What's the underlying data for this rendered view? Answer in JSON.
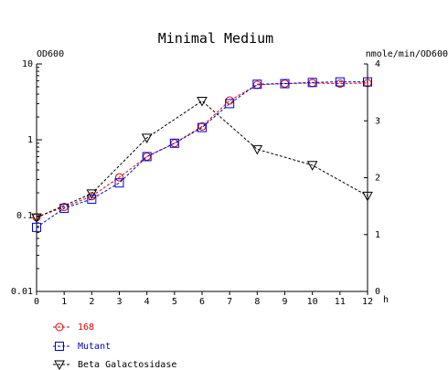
{
  "chart_data": {
    "type": "line",
    "title": "Minimal Medium",
    "y_left_label": "OD600",
    "y_right_label": "nmole/min/OD600",
    "x_unit_label": "h",
    "x_range": [
      0,
      12
    ],
    "x_ticks": [
      "0",
      "1",
      "2",
      "3",
      "4",
      "5",
      "6",
      "7",
      "8",
      "9",
      "10",
      "11",
      "12"
    ],
    "y_left_scale": "log",
    "y_left_range": [
      0.01,
      10
    ],
    "y_left_ticks": [
      "0.01",
      "0.1",
      "1",
      "10"
    ],
    "y_right_range": [
      0,
      4
    ],
    "y_right_ticks": [
      "0",
      "1",
      "2",
      "3",
      "4"
    ],
    "grid": false,
    "legend_position": "bottom-left",
    "series": [
      {
        "name": "168",
        "color": "#e00000",
        "marker": "circle",
        "axis": "left",
        "x": [
          0,
          1,
          2,
          3,
          4,
          5,
          6,
          7,
          8,
          9,
          10,
          11,
          12
        ],
        "y": [
          0.095,
          0.13,
          0.18,
          0.32,
          0.6,
          0.9,
          1.5,
          3.3,
          5.3,
          5.5,
          5.6,
          5.5,
          5.6
        ]
      },
      {
        "name": "Mutant",
        "color": "#0000d0",
        "marker": "square",
        "axis": "left",
        "x": [
          0,
          1,
          2,
          3,
          4,
          5,
          6,
          7,
          8,
          9,
          10,
          11,
          12
        ],
        "y": [
          0.07,
          0.125,
          0.165,
          0.27,
          0.6,
          0.9,
          1.45,
          3.0,
          5.4,
          5.5,
          5.7,
          5.8,
          5.8
        ]
      },
      {
        "name": "Beta Galactosidase",
        "color": "#000000",
        "marker": "triangle-down",
        "axis": "right",
        "x": [
          0,
          2,
          4,
          6,
          8,
          10,
          12
        ],
        "y": [
          1.3,
          1.72,
          2.7,
          3.35,
          2.5,
          2.22,
          1.68
        ]
      }
    ]
  }
}
